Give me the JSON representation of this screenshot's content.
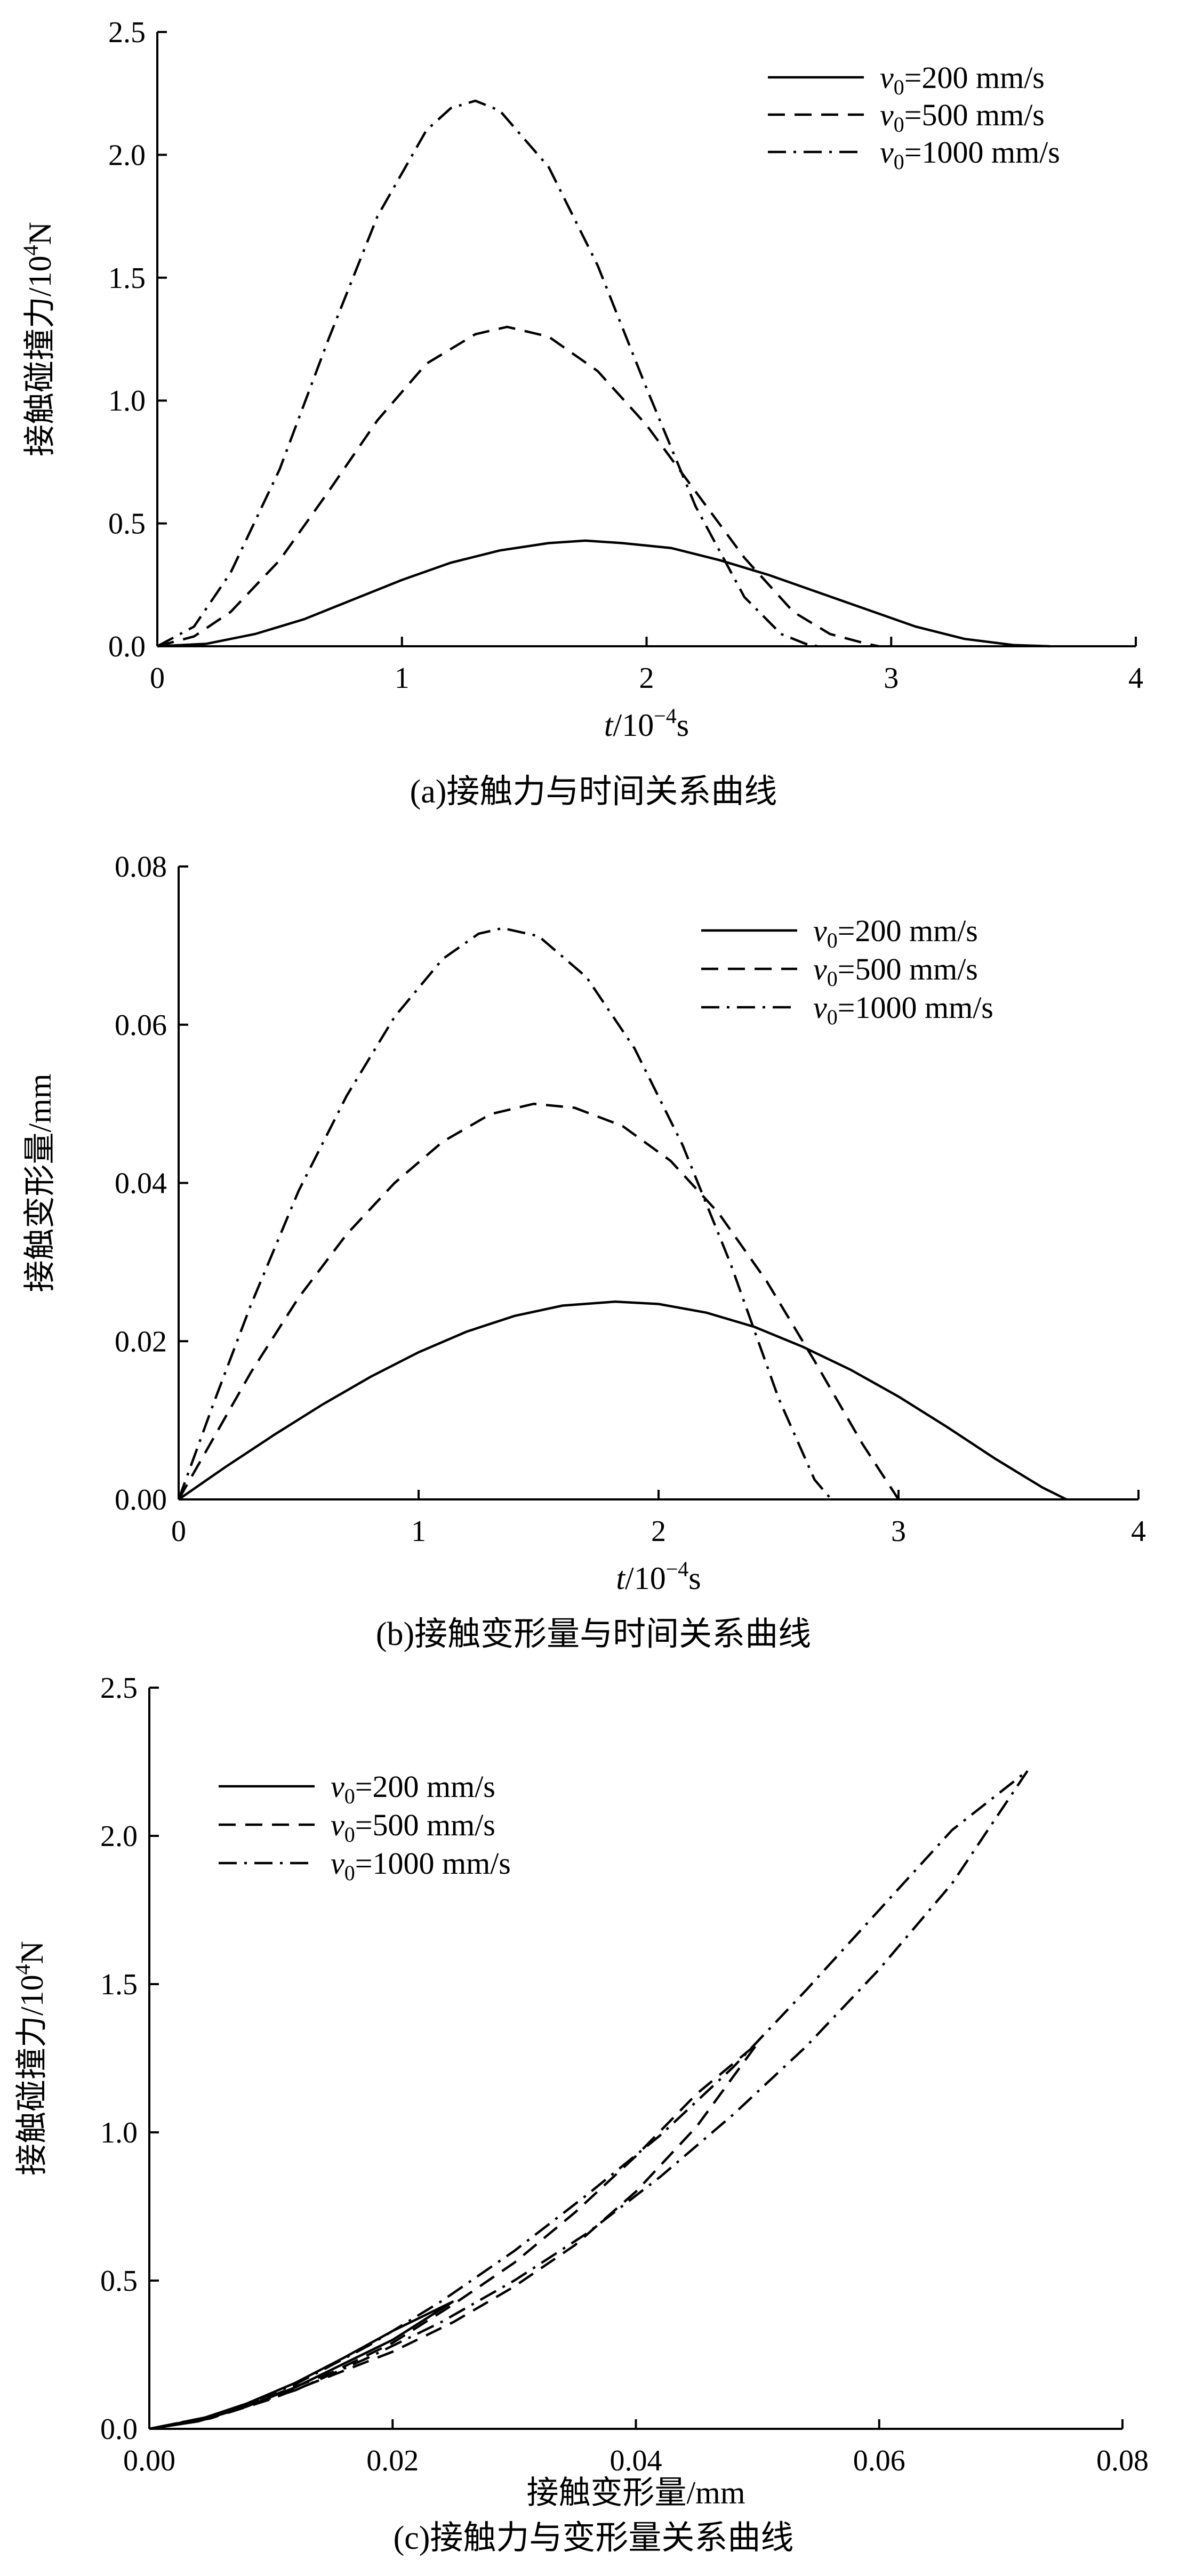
{
  "chart_data": [
    {
      "id": "a",
      "type": "line",
      "caption": "(a)接触力与时间关系曲线",
      "ylabel_text": "接触碰撞力/10",
      "ylabel_exp": "4",
      "ylabel_unit": "N",
      "xlabel_var": "t",
      "xlabel_unit": "/10",
      "xlabel_exp": "−4",
      "xlabel_tail": "s",
      "xlim": [
        0,
        4
      ],
      "ylim": [
        0,
        2.5
      ],
      "xticks": [
        0,
        1,
        2,
        3,
        4
      ],
      "xtick_labels": [
        "0",
        "1",
        "2",
        "3",
        "4"
      ],
      "yticks": [
        0,
        0.5,
        1.0,
        1.5,
        2.0,
        2.5
      ],
      "ytick_labels": [
        "0.0",
        "0.5",
        "1.0",
        "1.5",
        "2.0",
        "2.5"
      ],
      "legend_position": "top-right",
      "series": [
        {
          "name_var": "v",
          "name_sub": "0",
          "name_rest": "=200 mm/s",
          "style": "solid",
          "x": [
            0,
            0.2,
            0.4,
            0.6,
            0.8,
            1.0,
            1.2,
            1.4,
            1.6,
            1.75,
            1.9,
            2.1,
            2.3,
            2.5,
            2.7,
            2.9,
            3.1,
            3.3,
            3.5,
            3.65
          ],
          "y": [
            0,
            0.01,
            0.05,
            0.11,
            0.19,
            0.27,
            0.34,
            0.39,
            0.42,
            0.43,
            0.42,
            0.4,
            0.35,
            0.29,
            0.22,
            0.15,
            0.08,
            0.03,
            0.005,
            0
          ]
        },
        {
          "name_var": "v",
          "name_sub": "0",
          "name_rest": "=500 mm/s",
          "style": "dash",
          "x": [
            0,
            0.15,
            0.3,
            0.5,
            0.7,
            0.9,
            1.1,
            1.3,
            1.43,
            1.6,
            1.8,
            2.0,
            2.2,
            2.4,
            2.6,
            2.75,
            2.9,
            2.95
          ],
          "y": [
            0,
            0.04,
            0.14,
            0.35,
            0.63,
            0.92,
            1.15,
            1.27,
            1.3,
            1.26,
            1.12,
            0.9,
            0.63,
            0.36,
            0.14,
            0.05,
            0.01,
            0
          ]
        },
        {
          "name_var": "v",
          "name_sub": "0",
          "name_rest": "=1000 mm/s",
          "style": "dashdot",
          "x": [
            0,
            0.15,
            0.3,
            0.5,
            0.7,
            0.9,
            1.1,
            1.2,
            1.3,
            1.4,
            1.6,
            1.8,
            2.0,
            2.2,
            2.4,
            2.55,
            2.65,
            2.7
          ],
          "y": [
            0,
            0.08,
            0.3,
            0.72,
            1.25,
            1.75,
            2.1,
            2.19,
            2.22,
            2.18,
            1.95,
            1.55,
            1.05,
            0.57,
            0.2,
            0.05,
            0.01,
            0
          ]
        }
      ]
    },
    {
      "id": "b",
      "type": "line",
      "caption": "(b)接触变形量与时间关系曲线",
      "ylabel_text": "接触变形量/mm",
      "xlabel_var": "t",
      "xlabel_unit": "/10",
      "xlabel_exp": "−4",
      "xlabel_tail": "s",
      "xlim": [
        0,
        4
      ],
      "ylim": [
        0,
        0.08
      ],
      "xticks": [
        0,
        1,
        2,
        3,
        4
      ],
      "xtick_labels": [
        "0",
        "1",
        "2",
        "3",
        "4"
      ],
      "yticks": [
        0,
        0.02,
        0.04,
        0.06,
        0.08
      ],
      "ytick_labels": [
        "0.00",
        "0.02",
        "0.04",
        "0.06",
        "0.08"
      ],
      "legend_position": "top-right",
      "series": [
        {
          "name_var": "v",
          "name_sub": "0",
          "name_rest": "=200 mm/s",
          "style": "solid",
          "x": [
            0,
            0.2,
            0.4,
            0.6,
            0.8,
            1.0,
            1.2,
            1.4,
            1.6,
            1.82,
            2.0,
            2.2,
            2.4,
            2.6,
            2.8,
            3.0,
            3.2,
            3.4,
            3.6,
            3.7
          ],
          "y": [
            0,
            0.0042,
            0.0082,
            0.012,
            0.0155,
            0.0186,
            0.0212,
            0.0232,
            0.0245,
            0.025,
            0.0247,
            0.0236,
            0.0218,
            0.0193,
            0.0164,
            0.013,
            0.0092,
            0.0052,
            0.0015,
            0
          ]
        },
        {
          "name_var": "v",
          "name_sub": "0",
          "name_rest": "=500 mm/s",
          "style": "dash",
          "x": [
            0,
            0.15,
            0.3,
            0.5,
            0.7,
            0.9,
            1.1,
            1.3,
            1.48,
            1.65,
            1.85,
            2.05,
            2.25,
            2.45,
            2.65,
            2.85,
            3.0
          ],
          "y": [
            0,
            0.008,
            0.016,
            0.0255,
            0.0335,
            0.04,
            0.0452,
            0.0487,
            0.05,
            0.0495,
            0.0472,
            0.0428,
            0.0362,
            0.0276,
            0.0175,
            0.007,
            0
          ]
        },
        {
          "name_var": "v",
          "name_sub": "0",
          "name_rest": "=1000 mm/s",
          "style": "dashdot",
          "x": [
            0,
            0.15,
            0.3,
            0.5,
            0.7,
            0.9,
            1.1,
            1.25,
            1.35,
            1.5,
            1.7,
            1.9,
            2.1,
            2.3,
            2.5,
            2.65,
            2.72
          ],
          "y": [
            0,
            0.0125,
            0.0245,
            0.039,
            0.051,
            0.061,
            0.0683,
            0.0715,
            0.0722,
            0.0712,
            0.066,
            0.057,
            0.0448,
            0.0298,
            0.0128,
            0.0025,
            0
          ]
        }
      ]
    },
    {
      "id": "c",
      "type": "line",
      "caption": "(c)接触力与变形量关系曲线",
      "ylabel_text": "接触碰撞力/10",
      "ylabel_exp": "4",
      "ylabel_unit": "N",
      "xlabel_text": "接触变形量/mm",
      "xlim": [
        0,
        0.08
      ],
      "ylim": [
        0,
        2.5
      ],
      "xticks": [
        0,
        0.02,
        0.04,
        0.06,
        0.08
      ],
      "xtick_labels": [
        "0.00",
        "0.02",
        "0.04",
        "0.06",
        "0.08"
      ],
      "yticks": [
        0,
        0.5,
        1.0,
        1.5,
        2.0,
        2.5
      ],
      "ytick_labels": [
        "0.0",
        "0.5",
        "1.0",
        "1.5",
        "2.0",
        "2.5"
      ],
      "legend_position": "top-left",
      "series": [
        {
          "name_var": "v",
          "name_sub": "0",
          "name_rest": "=200 mm/s",
          "style": "solid",
          "x": [
            0,
            0.004,
            0.008,
            0.012,
            0.016,
            0.02,
            0.025,
            0.02,
            0.016,
            0.012,
            0.008,
            0.004,
            0
          ],
          "y": [
            0,
            0.025,
            0.075,
            0.14,
            0.22,
            0.3,
            0.43,
            0.33,
            0.24,
            0.155,
            0.085,
            0.03,
            0
          ]
        },
        {
          "name_var": "v",
          "name_sub": "0",
          "name_rest": "=500 mm/s",
          "style": "dash",
          "x": [
            0,
            0.005,
            0.01,
            0.015,
            0.02,
            0.025,
            0.03,
            0.035,
            0.04,
            0.045,
            0.05,
            0.045,
            0.04,
            0.035,
            0.03,
            0.025,
            0.02,
            0.015,
            0.01,
            0.005,
            0
          ],
          "y": [
            0,
            0.035,
            0.1,
            0.18,
            0.26,
            0.36,
            0.48,
            0.62,
            0.8,
            1.02,
            1.3,
            1.13,
            0.92,
            0.73,
            0.56,
            0.42,
            0.29,
            0.19,
            0.11,
            0.04,
            0
          ]
        },
        {
          "name_var": "v",
          "name_sub": "0",
          "name_rest": "=1000 mm/s",
          "style": "dashdot",
          "x": [
            0,
            0.006,
            0.012,
            0.018,
            0.024,
            0.03,
            0.036,
            0.042,
            0.048,
            0.054,
            0.06,
            0.066,
            0.0722,
            0.066,
            0.06,
            0.054,
            0.048,
            0.042,
            0.036,
            0.03,
            0.024,
            0.018,
            0.012,
            0.006,
            0
          ],
          "y": [
            0,
            0.05,
            0.13,
            0.24,
            0.36,
            0.5,
            0.66,
            0.85,
            1.06,
            1.29,
            1.55,
            1.84,
            2.22,
            2.02,
            1.75,
            1.48,
            1.22,
            0.99,
            0.79,
            0.6,
            0.43,
            0.28,
            0.15,
            0.05,
            0
          ]
        }
      ]
    }
  ]
}
